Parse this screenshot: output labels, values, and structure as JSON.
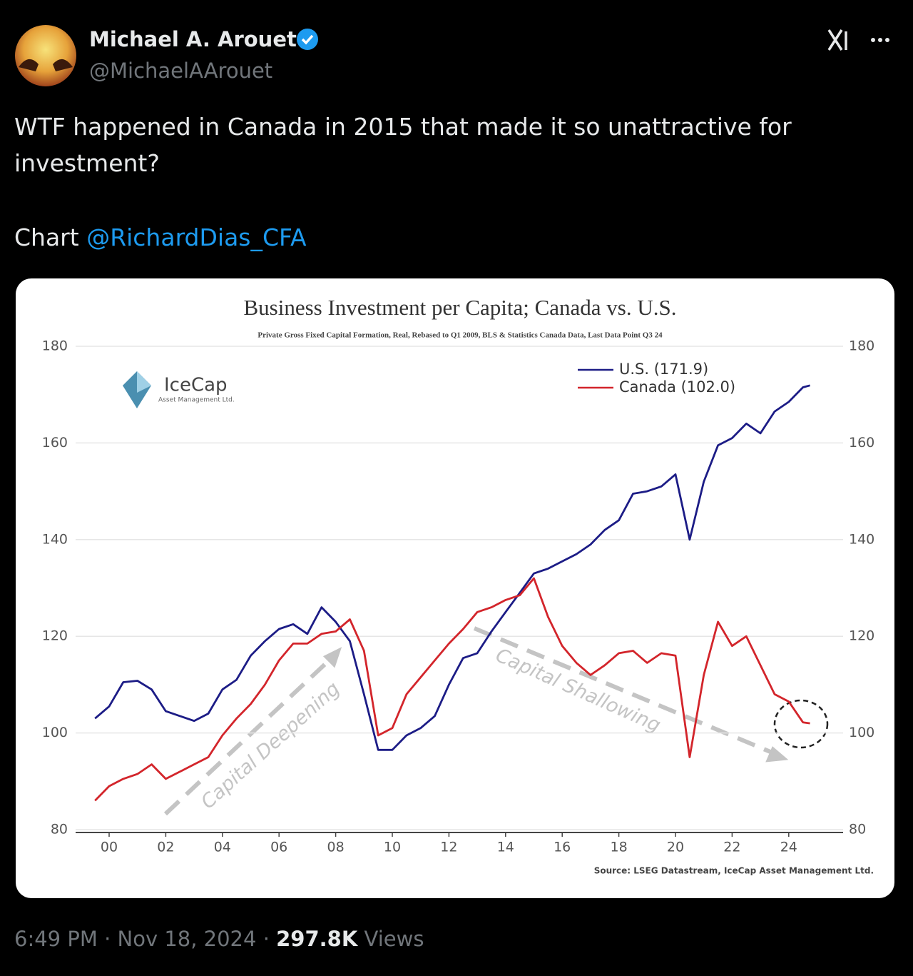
{
  "tweet": {
    "name": "Michael A. Arouet",
    "handle": "@MichaelAArouet",
    "text": "WTF happened in Canada in 2015 that made it so unattractive for investment?",
    "chart_prefix": "Chart",
    "mention": "@RichardDias_CFA",
    "time": "6:49 PM · Nov 18, 2024",
    "separator": "·",
    "views_count": "297.8K",
    "views_label": "Views"
  },
  "chart_data": {
    "type": "line",
    "title": "Business Investment per Capita; Canada vs. U.S.",
    "subtitle": "Private Gross Fixed Capital Formation, Real, Rebased to Q1 2009, BLS & Statistics Canada Data, Last Data Point Q3 24",
    "source": "Source: LSEG Datastream, IceCap Asset Management Ltd.",
    "logo": "IceCap",
    "logo_sub": "Asset Management Ltd.",
    "annotations": [
      "Capital Deepening",
      "Capital Shallowing"
    ],
    "x": [
      1999.5,
      2000,
      2000.5,
      2001,
      2001.5,
      2002,
      2002.5,
      2003,
      2003.5,
      2004,
      2004.5,
      2005,
      2005.5,
      2006,
      2006.5,
      2007,
      2007.5,
      2008,
      2008.5,
      2009,
      2009.5,
      2010,
      2010.5,
      2011,
      2011.5,
      2012,
      2012.5,
      2013,
      2013.5,
      2014,
      2014.5,
      2015,
      2015.5,
      2016,
      2016.5,
      2017,
      2017.5,
      2018,
      2018.5,
      2019,
      2019.5,
      2020,
      2020.5,
      2021,
      2021.5,
      2022,
      2022.5,
      2023,
      2023.5,
      2024,
      2024.5,
      2024.75
    ],
    "series": [
      {
        "name": "U.S. (171.9)",
        "color": "#1c1c86",
        "values": [
          103,
          105.5,
          110.5,
          110.8,
          109,
          104.5,
          103.5,
          102.5,
          104,
          109,
          111,
          116,
          119,
          121.5,
          122.5,
          120.5,
          126,
          123,
          119,
          108,
          96.5,
          96.5,
          99.5,
          101,
          103.5,
          110,
          115.5,
          116.5,
          121,
          125,
          129,
          133,
          134,
          135.5,
          137,
          139,
          142,
          144,
          149.5,
          150,
          151,
          153.5,
          140,
          152,
          159.5,
          161,
          164,
          162,
          166.5,
          168.5,
          171.5,
          171.9
        ]
      },
      {
        "name": "Canada (102.0)",
        "color": "#d3252b",
        "values": [
          86,
          89,
          90.5,
          91.5,
          93.5,
          90.5,
          92,
          93.5,
          95,
          99.5,
          103,
          106,
          110,
          115,
          118.5,
          118.5,
          120.5,
          121,
          123.5,
          117,
          99.5,
          101,
          108,
          111.5,
          115,
          118.5,
          121.5,
          125,
          126,
          127.5,
          128.5,
          132,
          124,
          118,
          114.5,
          112,
          114,
          116.5,
          117,
          114.5,
          116.5,
          116,
          95,
          112,
          123,
          118,
          120,
          114,
          108,
          106.5,
          102.2,
          102
        ]
      }
    ],
    "xlim": [
      1998.8,
      2026.3
    ],
    "xticks": [
      {
        "value": 2000,
        "label": "00"
      },
      {
        "value": 2002,
        "label": "02"
      },
      {
        "value": 2004,
        "label": "04"
      },
      {
        "value": 2006,
        "label": "06"
      },
      {
        "value": 2008,
        "label": "08"
      },
      {
        "value": 2010,
        "label": "10"
      },
      {
        "value": 2012,
        "label": "12"
      },
      {
        "value": 2014,
        "label": "14"
      },
      {
        "value": 2016,
        "label": "16"
      },
      {
        "value": 2018,
        "label": "18"
      },
      {
        "value": 2020,
        "label": "20"
      },
      {
        "value": 2022,
        "label": "22"
      },
      {
        "value": 2024,
        "label": "24"
      }
    ],
    "ylim": [
      80,
      180
    ],
    "yticks": [
      80,
      100,
      120,
      140,
      160,
      180
    ],
    "y2lim": [
      80,
      180
    ],
    "y2ticks": [
      80,
      100,
      120,
      140,
      160,
      180
    ],
    "grid": true
  }
}
